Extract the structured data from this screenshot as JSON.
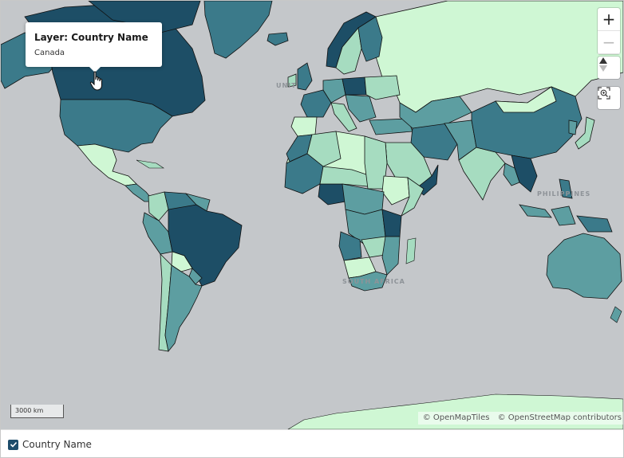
{
  "map": {
    "ocean_labels": [
      "UNIT",
      "SOUTH AMERICA",
      "SOUTH AFRICA",
      "PHILIPPINES"
    ],
    "palette": {
      "ocean": "#c4c7ca",
      "lightest": "#cff7d4",
      "light": "#a6dcc0",
      "medium": "#5d9ea1",
      "dark": "#3b7a8a",
      "darkest": "#1d4e66"
    },
    "hovered_country": "Canada"
  },
  "tooltip": {
    "title": "Layer: Country Name",
    "value": "Canada"
  },
  "controls": {
    "zoom_in_icon": "+",
    "zoom_out_icon": "−",
    "compass_icon": "compass-icon",
    "fit_icon": "zoom-to-extent-icon"
  },
  "scale": {
    "label": "3000 km"
  },
  "attribution": {
    "tiles": "© OpenMapTiles",
    "osm": "© OpenStreetMap contributors"
  },
  "legend": {
    "items": [
      {
        "label": "Country Name",
        "checked": true
      }
    ]
  }
}
